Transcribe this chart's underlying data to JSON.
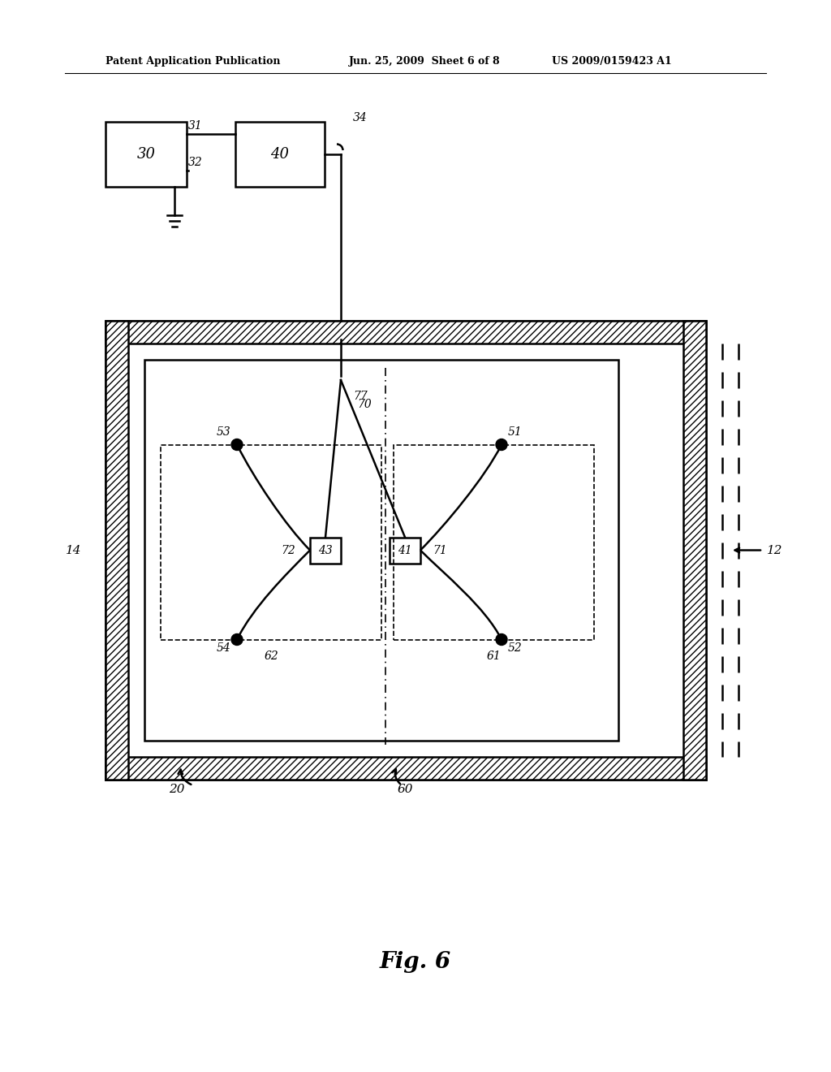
{
  "title_header": "Patent Application Publication",
  "title_date": "Jun. 25, 2009  Sheet 6 of 8",
  "title_patent": "US 2009/0159423 A1",
  "fig_caption": "Fig. 6",
  "background_color": "#ffffff",
  "line_color": "#000000",
  "hatch_color": "#000000"
}
